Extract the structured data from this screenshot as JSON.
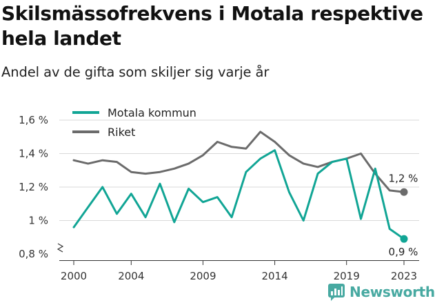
{
  "title": "Skilsmässofrekvens i Motala respektive hela landet",
  "subtitle": "Andel av de gifta som skiljer sig varje år",
  "brand": {
    "name": "Newsworthy",
    "icon": "newsworthy-logo-icon"
  },
  "colors": {
    "motala": "#11a595",
    "riket": "#6b6b6b",
    "grid": "#d9d9d9",
    "brand": "#47a9a1"
  },
  "chart_data": {
    "type": "line",
    "title": "",
    "xlabel": "",
    "ylabel": "",
    "x": [
      2000,
      2001,
      2002,
      2003,
      2004,
      2005,
      2006,
      2007,
      2008,
      2009,
      2010,
      2011,
      2012,
      2013,
      2014,
      2015,
      2016,
      2017,
      2018,
      2019,
      2020,
      2021,
      2022,
      2023
    ],
    "x_ticks": [
      2000,
      2004,
      2009,
      2014,
      2019,
      2023
    ],
    "x_tick_labels": [
      "2000",
      "2004",
      "2009",
      "2014",
      "2019",
      "2023"
    ],
    "y_ticks": [
      0.8,
      1.0,
      1.2,
      1.4,
      1.6
    ],
    "y_tick_labels": [
      "0,8 %",
      "1 %",
      "1,2 %",
      "1,4 %",
      "1,6 %"
    ],
    "ylim": [
      0.8,
      1.6
    ],
    "y_axis_break": true,
    "grid": "horizontal",
    "legend_position": "top-left",
    "series": [
      {
        "name": "Motala kommun",
        "color": "#11a595",
        "values": [
          0.96,
          1.08,
          1.2,
          1.04,
          1.16,
          1.02,
          1.22,
          0.99,
          1.19,
          1.11,
          1.14,
          1.02,
          1.29,
          1.37,
          1.42,
          1.17,
          1.0,
          1.28,
          1.35,
          1.37,
          1.01,
          1.31,
          0.95,
          0.89
        ],
        "end_label": "0,9 %"
      },
      {
        "name": "Riket",
        "color": "#6b6b6b",
        "values": [
          1.36,
          1.34,
          1.36,
          1.35,
          1.29,
          1.28,
          1.29,
          1.31,
          1.34,
          1.39,
          1.47,
          1.44,
          1.43,
          1.53,
          1.47,
          1.39,
          1.34,
          1.32,
          1.35,
          1.37,
          1.4,
          1.28,
          1.18,
          1.17
        ],
        "end_label": "1,2 %"
      }
    ]
  }
}
